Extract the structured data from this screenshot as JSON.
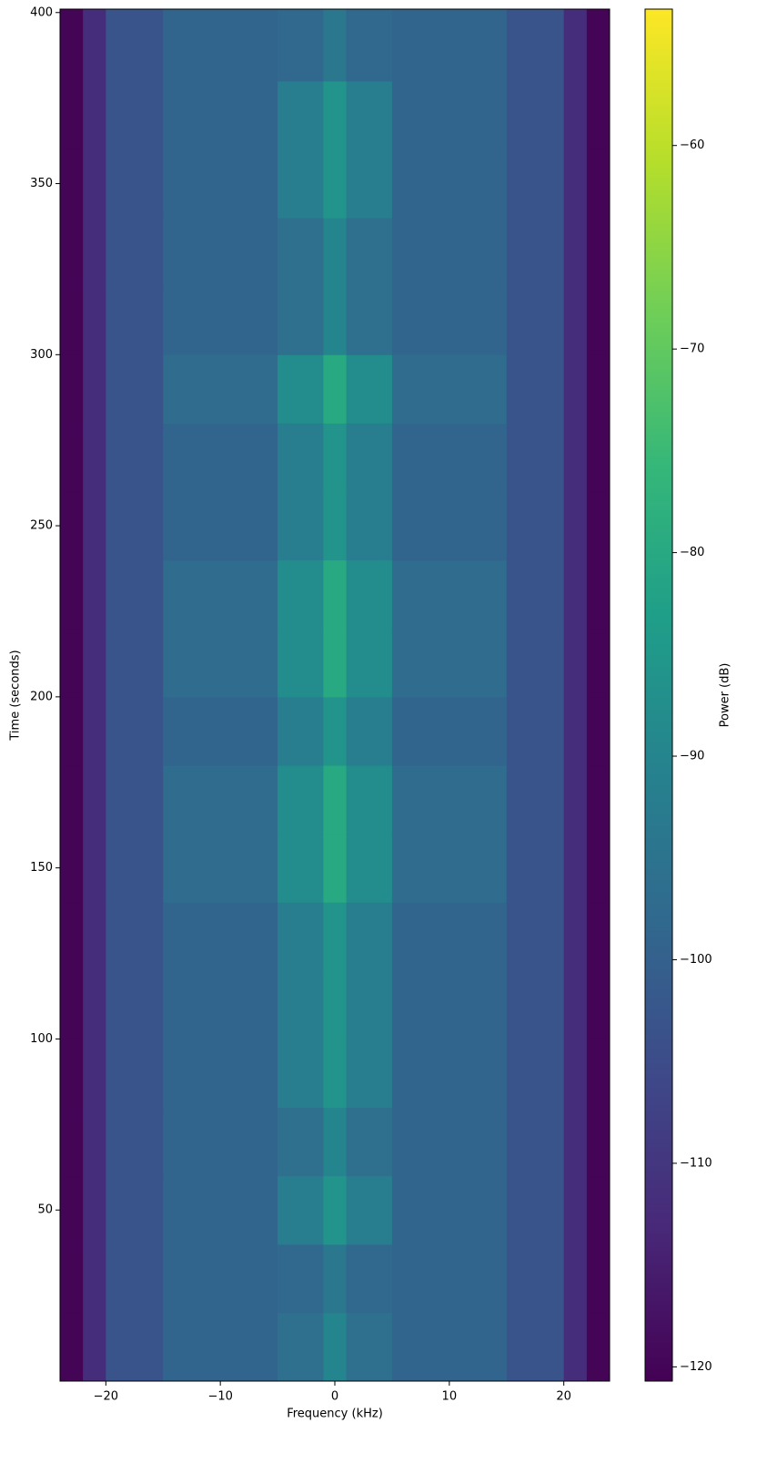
{
  "chart_data": {
    "type": "heatmap",
    "xlabel": "Frequency (kHz)",
    "ylabel": "Time (seconds)",
    "colorbar_label": "Power (dB)",
    "xlim": [
      -24,
      24
    ],
    "ylim": [
      0,
      401
    ],
    "clim": [
      -120.7,
      -53.3
    ],
    "xticks": [
      {
        "value": -20,
        "label": "−20"
      },
      {
        "value": -10,
        "label": "−10"
      },
      0,
      10,
      20
    ],
    "yticks": [
      50,
      100,
      150,
      200,
      250,
      300,
      350,
      400
    ],
    "cticks": [
      {
        "value": -120,
        "label": "−120"
      },
      {
        "value": -110,
        "label": "−110"
      },
      {
        "value": -100,
        "label": "−100"
      },
      {
        "value": -90,
        "label": "−90"
      },
      {
        "value": -80,
        "label": "−80"
      },
      {
        "value": -70,
        "label": "−70"
      },
      {
        "value": -60,
        "label": "−60"
      }
    ],
    "colormap": [
      "#440154",
      "#482878",
      "#3e4989",
      "#31688e",
      "#26828e",
      "#1f9e89",
      "#35b779",
      "#6ece58",
      "#b5de2b",
      "#fde725"
    ],
    "x_bins": [
      -24,
      -22,
      -20,
      -15,
      -5,
      -1,
      1,
      5,
      15,
      20,
      22,
      24
    ],
    "y_bins": [
      0,
      20,
      40,
      60,
      80,
      100,
      120,
      140,
      160,
      180,
      200,
      220,
      240,
      260,
      280,
      300,
      320,
      340,
      360,
      380,
      401
    ],
    "z": [
      [
        -120,
        -112,
        -103,
        -99,
        -96,
        -90,
        -96,
        -99,
        -103,
        -112,
        -120
      ],
      [
        -120,
        -112,
        -103,
        -99,
        -98,
        -94,
        -98,
        -99,
        -103,
        -112,
        -120
      ],
      [
        -120,
        -112,
        -103,
        -99,
        -92,
        -86,
        -92,
        -99,
        -103,
        -112,
        -120
      ],
      [
        -120,
        -112,
        -103,
        -99,
        -96,
        -90,
        -96,
        -99,
        -103,
        -112,
        -120
      ],
      [
        -120,
        -112,
        -103,
        -99,
        -92,
        -86,
        -92,
        -99,
        -103,
        -112,
        -120
      ],
      [
        -120,
        -112,
        -103,
        -99,
        -92,
        -86,
        -92,
        -99,
        -103,
        -112,
        -120
      ],
      [
        -120,
        -112,
        -103,
        -99,
        -92,
        -86,
        -92,
        -99,
        -103,
        -112,
        -120
      ],
      [
        -120,
        -112,
        -103,
        -97,
        -88,
        -80,
        -88,
        -97,
        -103,
        -112,
        -120
      ],
      [
        -120,
        -112,
        -103,
        -97,
        -88,
        -80,
        -88,
        -97,
        -103,
        -112,
        -120
      ],
      [
        -120,
        -112,
        -103,
        -99,
        -92,
        -86,
        -92,
        -99,
        -103,
        -112,
        -120
      ],
      [
        -120,
        -112,
        -103,
        -97,
        -88,
        -80,
        -88,
        -97,
        -103,
        -112,
        -120
      ],
      [
        -120,
        -112,
        -103,
        -97,
        -88,
        -80,
        -88,
        -97,
        -103,
        -112,
        -120
      ],
      [
        -120,
        -112,
        -103,
        -99,
        -92,
        -86,
        -92,
        -99,
        -103,
        -112,
        -120
      ],
      [
        -120,
        -112,
        -103,
        -99,
        -92,
        -86,
        -92,
        -99,
        -103,
        -112,
        -120
      ],
      [
        -120,
        -112,
        -103,
        -97,
        -88,
        -80,
        -88,
        -97,
        -103,
        -112,
        -120
      ],
      [
        -120,
        -112,
        -103,
        -99,
        -96,
        -90,
        -96,
        -99,
        -103,
        -112,
        -120
      ],
      [
        -120,
        -112,
        -103,
        -99,
        -96,
        -90,
        -96,
        -99,
        -103,
        -112,
        -120
      ],
      [
        -120,
        -112,
        -103,
        -99,
        -92,
        -86,
        -92,
        -99,
        -103,
        -112,
        -120
      ],
      [
        -120,
        -112,
        -103,
        -99,
        -92,
        -86,
        -92,
        -99,
        -103,
        -112,
        -120
      ],
      [
        -120,
        -112,
        -103,
        -99,
        -98,
        -94,
        -98,
        -99,
        -103,
        -112,
        -120
      ]
    ]
  }
}
